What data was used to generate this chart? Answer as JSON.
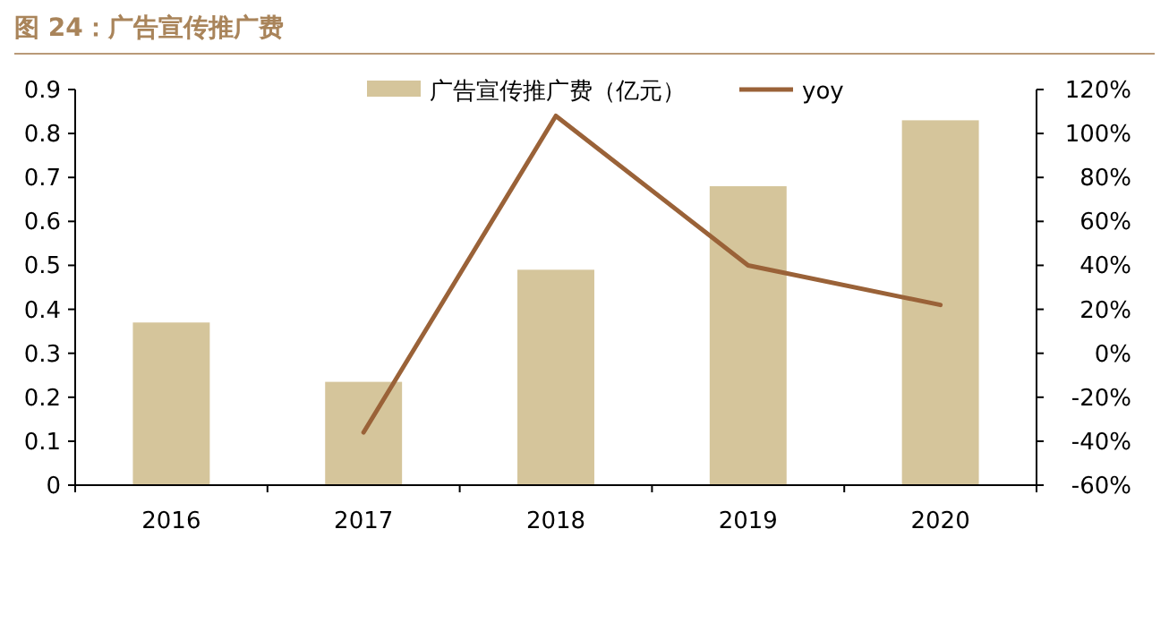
{
  "chart_data": {
    "type": "bar",
    "title": "图 24：广告宣传推广费",
    "categories": [
      "2016",
      "2017",
      "2018",
      "2019",
      "2020"
    ],
    "series": [
      {
        "name": "广告宣传推广费（亿元）",
        "color": "#d5c59b",
        "values": [
          0.37,
          0.235,
          0.49,
          0.68,
          0.83
        ]
      },
      {
        "name": "yoy",
        "type": "line",
        "axis": "y2",
        "color": "#9a6238",
        "values": [
          null,
          -36,
          108,
          40,
          22
        ]
      }
    ],
    "ylim": [
      0,
      0.9
    ],
    "yticks": [
      0,
      0.1,
      0.2,
      0.3,
      0.4,
      0.5,
      0.6,
      0.7,
      0.8,
      0.9
    ],
    "y2lim": [
      -60,
      120
    ],
    "y2ticks": [
      {
        "value": -60,
        "label": "-60%"
      },
      {
        "value": -40,
        "label": "-40%"
      },
      {
        "value": -20,
        "label": "-20%"
      },
      {
        "value": 0,
        "label": "0%"
      },
      {
        "value": 20,
        "label": "20%"
      },
      {
        "value": 40,
        "label": "40%"
      },
      {
        "value": 60,
        "label": "60%"
      },
      {
        "value": 80,
        "label": "80%"
      },
      {
        "value": 100,
        "label": "100%"
      },
      {
        "value": 120,
        "label": "120%"
      }
    ],
    "legend": "top",
    "grid": false,
    "marker": "none",
    "line_style": "solid"
  }
}
